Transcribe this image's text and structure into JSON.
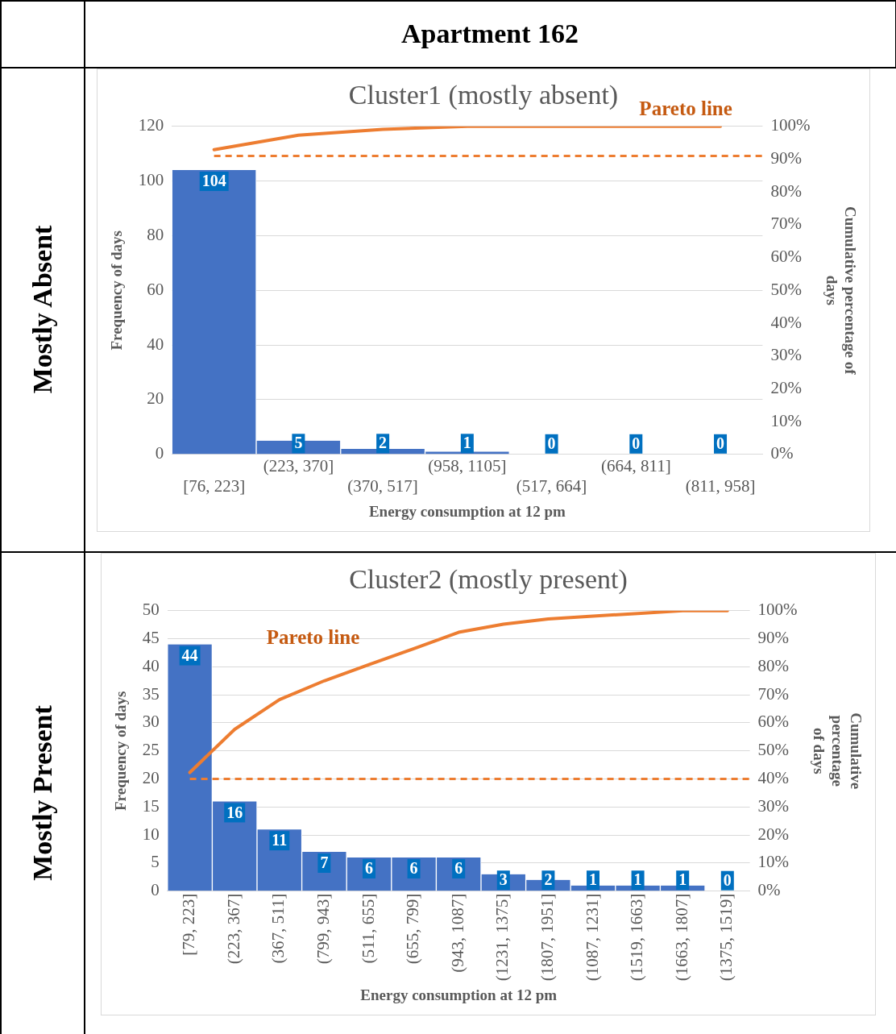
{
  "chart_data": [
    {
      "type": "other",
      "title": "Apartment 162",
      "annotations": [
        "Mostly Absent",
        "Mostly Present"
      ]
    },
    {
      "type": "bar",
      "title": "Cluster1 (mostly absent)",
      "xlabel": "Energy consumption at 12 pm",
      "ylabel": "Frequency of days",
      "y2label": "Cumulative percentage of days",
      "categories": [
        "[76, 223]",
        "(223, 370]",
        "(370, 517]",
        "(958, 1105]",
        "(517, 664]",
        "(664, 811]",
        "(811, 958]"
      ],
      "series": [
        {
          "type": "bar",
          "color": "#4472c4",
          "values": [
            104,
            5,
            2,
            1,
            0,
            0,
            0
          ],
          "value_labels": [
            "104",
            "5",
            "2",
            "1",
            "0",
            "0",
            "0"
          ]
        },
        {
          "type": "line",
          "axis": "y2",
          "color": "#ed7d31",
          "values": [
            92.9,
            97.3,
            99.1,
            100,
            100,
            100,
            100
          ],
          "marker": "none",
          "line_style": "solid"
        }
      ],
      "ylim": [
        0,
        120
      ],
      "yticks": [
        0,
        20,
        40,
        60,
        80,
        100,
        120
      ],
      "y2lim": [
        0,
        100
      ],
      "y2ticks": [
        {
          "value": 0,
          "label": "0%"
        },
        {
          "value": 10,
          "label": "10%"
        },
        {
          "value": 20,
          "label": "20%"
        },
        {
          "value": 30,
          "label": "30%"
        },
        {
          "value": 40,
          "label": "40%"
        },
        {
          "value": 50,
          "label": "50%"
        },
        {
          "value": 60,
          "label": "60%"
        },
        {
          "value": 70,
          "label": "70%"
        },
        {
          "value": 80,
          "label": "80%"
        },
        {
          "value": 90,
          "label": "90%"
        },
        {
          "value": 100,
          "label": "100%"
        }
      ],
      "ref_lines": [
        {
          "axis": "y2",
          "value": 91,
          "color": "#ed7d31",
          "line_style": "dashed"
        }
      ],
      "annotations": [
        "Pareto line"
      ],
      "grid": "y",
      "legend": false
    },
    {
      "type": "bar",
      "title": "Cluster2 (mostly present)",
      "xlabel": "Energy consumption at 12 pm",
      "ylabel": "Frequency of days",
      "y2label": "Cumulative percentage of days",
      "categories": [
        "[79, 223]",
        "(223, 367]",
        "(367, 511]",
        "(799, 943]",
        "(511, 655]",
        "(655, 799]",
        "(943, 1087]",
        "(1231, 1375]",
        "(1807, 1951]",
        "(1087, 1231]",
        "(1519, 1663]",
        "(1663, 1807]",
        "(1375, 1519]"
      ],
      "series": [
        {
          "type": "bar",
          "color": "#4472c4",
          "values": [
            44,
            16,
            11,
            7,
            6,
            6,
            6,
            3,
            2,
            1,
            1,
            1,
            0
          ],
          "value_labels": [
            "44",
            "16",
            "11",
            "7",
            "6",
            "6",
            "6",
            "3",
            "2",
            "1",
            "1",
            "1",
            "0"
          ]
        },
        {
          "type": "line",
          "axis": "y2",
          "color": "#ed7d31",
          "values": [
            42.3,
            57.7,
            68.3,
            75,
            80.8,
            86.5,
            92.3,
            95.2,
            97.1,
            98.1,
            99,
            100,
            100
          ],
          "marker": "none",
          "line_style": "solid"
        }
      ],
      "ylim": [
        0,
        50
      ],
      "yticks": [
        0,
        5,
        10,
        15,
        20,
        25,
        30,
        35,
        40,
        45,
        50
      ],
      "y2lim": [
        0,
        100
      ],
      "y2ticks": [
        {
          "value": 0,
          "label": "0%"
        },
        {
          "value": 10,
          "label": "10%"
        },
        {
          "value": 20,
          "label": "20%"
        },
        {
          "value": 30,
          "label": "30%"
        },
        {
          "value": 40,
          "label": "40%"
        },
        {
          "value": 50,
          "label": "50%"
        },
        {
          "value": 60,
          "label": "60%"
        },
        {
          "value": 70,
          "label": "70%"
        },
        {
          "value": 80,
          "label": "80%"
        },
        {
          "value": 90,
          "label": "90%"
        },
        {
          "value": 100,
          "label": "100%"
        }
      ],
      "ref_lines": [
        {
          "axis": "y2",
          "value": 40,
          "color": "#ed7d31",
          "line_style": "dashed"
        }
      ],
      "annotations": [
        "Pareto line"
      ],
      "grid": "y",
      "legend": false
    }
  ]
}
